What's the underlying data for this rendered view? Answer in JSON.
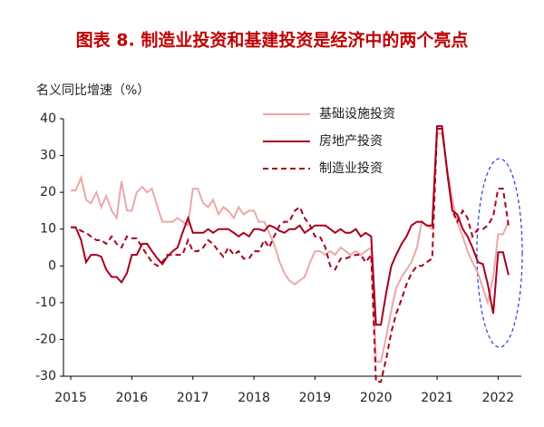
{
  "chart_data": {
    "type": "line",
    "title": "图表 8.  制造业投资和基建投资是经济中的两个亮点",
    "y_label": "名义同比增速（%）",
    "xlim": [
      2014.88,
      2022.38
    ],
    "xticks": [
      2015,
      2016,
      2017,
      2018,
      2019,
      2020,
      2021,
      2022
    ],
    "ylim": [
      -30,
      40
    ],
    "yticks": [
      -30,
      -20,
      -10,
      0,
      10,
      20,
      30,
      40
    ],
    "grid": false,
    "legend": "top",
    "x": [
      2015.0,
      2015.08,
      2015.17,
      2015.25,
      2015.33,
      2015.42,
      2015.5,
      2015.58,
      2015.67,
      2015.75,
      2015.83,
      2015.92,
      2016.0,
      2016.08,
      2016.17,
      2016.25,
      2016.33,
      2016.42,
      2016.5,
      2016.58,
      2016.67,
      2016.75,
      2016.83,
      2016.92,
      2017.0,
      2017.08,
      2017.17,
      2017.25,
      2017.33,
      2017.42,
      2017.5,
      2017.58,
      2017.67,
      2017.75,
      2017.83,
      2017.92,
      2018.0,
      2018.08,
      2018.17,
      2018.25,
      2018.33,
      2018.42,
      2018.5,
      2018.58,
      2018.67,
      2018.75,
      2018.83,
      2018.92,
      2019.0,
      2019.08,
      2019.17,
      2019.25,
      2019.33,
      2019.42,
      2019.5,
      2019.58,
      2019.67,
      2019.75,
      2019.83,
      2019.92,
      2020.0,
      2020.08,
      2020.17,
      2020.25,
      2020.33,
      2020.42,
      2020.5,
      2020.58,
      2020.67,
      2020.75,
      2020.83,
      2020.92,
      2021.0,
      2021.08,
      2021.17,
      2021.25,
      2021.33,
      2021.42,
      2021.5,
      2021.58,
      2021.67,
      2021.75,
      2021.83,
      2021.92,
      2022.0,
      2022.08,
      2022.17
    ],
    "series": [
      {
        "name": "基础设施投资",
        "color": "#eba8a8",
        "line_style": "solid",
        "values": [
          20.5,
          20.5,
          24,
          18,
          17,
          20,
          16,
          19,
          15,
          13,
          23,
          15,
          15,
          20,
          21.5,
          20,
          21,
          16,
          12,
          12,
          12,
          13,
          12,
          11,
          21,
          21,
          17,
          16,
          18,
          14,
          16,
          15,
          13,
          16,
          14,
          15,
          15,
          12,
          12,
          9,
          6,
          1,
          -2,
          -4,
          -5,
          -4,
          -3,
          1,
          4,
          4,
          3,
          4,
          3,
          5,
          4,
          3,
          4,
          3,
          4,
          5,
          -26,
          -26,
          -19,
          -12,
          -6,
          -3,
          -1,
          1,
          5,
          12,
          11,
          10,
          36,
          36,
          26,
          18,
          12,
          8,
          4,
          1,
          -2,
          -6,
          -10,
          -3,
          8.6,
          8.6,
          12
        ]
      },
      {
        "name": "房地产投资",
        "color": "#a6001e",
        "line_style": "solid",
        "values": [
          10.5,
          10.5,
          7,
          1,
          3,
          3,
          2.5,
          -1,
          -3,
          -3,
          -4.5,
          -2,
          3,
          3,
          6,
          6,
          4,
          2,
          0.5,
          2.5,
          4,
          5,
          9,
          13,
          9,
          9,
          9,
          10,
          9,
          10,
          10,
          10,
          9,
          8,
          9,
          8,
          10,
          10,
          9.5,
          11,
          10.5,
          9.5,
          9,
          10,
          10,
          11,
          9,
          10,
          11,
          11,
          11,
          10,
          9,
          10,
          9,
          9,
          10,
          8,
          9,
          8,
          -16,
          -16,
          -7,
          0,
          3,
          6,
          8,
          11,
          12,
          12,
          11,
          11,
          38,
          38,
          25,
          15,
          14,
          10,
          8,
          5,
          1,
          0.5,
          -5,
          -13,
          3.7,
          3.7,
          -2.5
        ]
      },
      {
        "name": "制造业投资",
        "color": "#a6001e",
        "line_style": "dashed",
        "values": [
          10.5,
          10.5,
          9.5,
          9,
          8,
          7,
          7,
          6,
          8,
          6,
          5,
          8,
          7.5,
          7.5,
          5,
          3,
          1,
          0,
          1,
          3,
          3,
          3,
          3,
          7,
          4,
          4,
          5,
          7,
          6,
          4,
          2.5,
          5,
          3,
          4,
          2,
          2,
          4,
          4,
          7,
          5,
          8,
          11,
          12,
          12,
          15,
          16,
          13,
          11,
          8,
          8,
          5,
          0,
          -1,
          2,
          2,
          2.5,
          3,
          3,
          1,
          3,
          -31.5,
          -31.5,
          -25,
          -18,
          -13,
          -9,
          -5,
          -2,
          0,
          0,
          1,
          2,
          37.3,
          37.3,
          25,
          15,
          12,
          15,
          13,
          8,
          10,
          10,
          11,
          13.5,
          21,
          21,
          11
        ]
      }
    ]
  }
}
